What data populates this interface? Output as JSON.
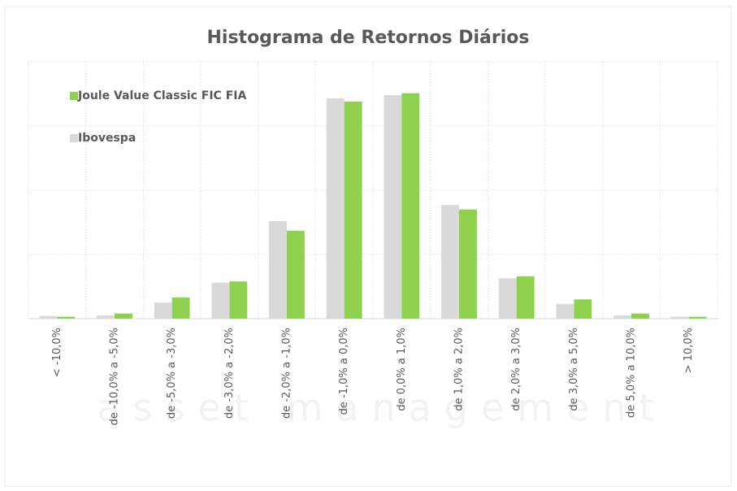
{
  "chart_data": {
    "type": "bar",
    "title": "Histograma de Retornos Diários",
    "watermark": "asset management",
    "categories": [
      "< -10,0%",
      "de -10,0% a -5,0%",
      "de -5,0% a -3,0%",
      "de -3,0% a -2,0%",
      "de -2,0% a -1,0%",
      "de -1,0% a 0,0%",
      "de 0,0% a 1,0%",
      "de 1,0% a 2,0%",
      "de 2,0% a 3,0%",
      "de 3,0% a 5,0%",
      "de 5,0% a 10,0%",
      "> 10,0%"
    ],
    "series": [
      {
        "name": "Joule Value Classic FIC FIA",
        "color": "#8fd14f",
        "values": [
          0.03,
          0.08,
          0.33,
          0.58,
          1.37,
          3.38,
          3.51,
          1.7,
          0.66,
          0.3,
          0.08,
          0.03
        ]
      },
      {
        "name": "Ibovespa",
        "color": "#d9d9d9",
        "values": [
          0.04,
          0.05,
          0.25,
          0.56,
          1.52,
          3.43,
          3.48,
          1.77,
          0.63,
          0.23,
          0.05,
          0.03
        ]
      }
    ],
    "ylim": [
      0,
      4
    ],
    "yticks": [
      0,
      1,
      2,
      3,
      4
    ],
    "grid": true,
    "legend": "top-left"
  }
}
